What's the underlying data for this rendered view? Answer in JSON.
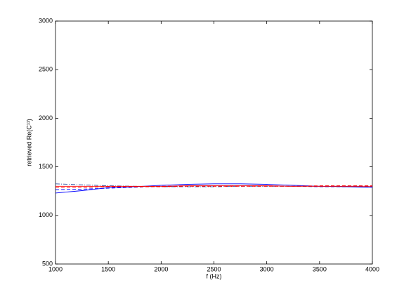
{
  "chart_data": {
    "type": "line",
    "xlabel": "f (Hz)",
    "ylabel": "retrieved Re(C¹¹)",
    "x": [
      1000,
      1250,
      1500,
      1750,
      2000,
      2250,
      2500,
      2750,
      3000,
      3250,
      3500,
      3750,
      4000
    ],
    "series": [
      {
        "color": "#0000ff",
        "style": "solid",
        "values": [
          1230,
          1255,
          1285,
          1295,
          1310,
          1320,
          1325,
          1325,
          1320,
          1310,
          1300,
          1295,
          1290
        ]
      },
      {
        "color": "#0000ff",
        "style": "dashed",
        "values": [
          1265,
          1270,
          1280,
          1290,
          1300,
          1305,
          1305,
          1305,
          1305,
          1300,
          1295,
          1295,
          1295
        ]
      },
      {
        "color": "#3050a0",
        "style": "dashdot",
        "values": [
          1325,
          1315,
          1305,
          1300,
          1295,
          1295,
          1295,
          1300,
          1300,
          1300,
          1300,
          1300,
          1300
        ]
      },
      {
        "color": "#ff0000",
        "style": "solid",
        "values": [
          1300,
          1300,
          1300,
          1300,
          1300,
          1305,
          1305,
          1305,
          1305,
          1300,
          1300,
          1300,
          1300
        ]
      },
      {
        "color": "#ff0000",
        "style": "dashed",
        "values": [
          1290,
          1290,
          1295,
          1295,
          1295,
          1300,
          1300,
          1300,
          1300,
          1300,
          1305,
          1305,
          1305
        ]
      }
    ],
    "xlim": [
      1000,
      4000
    ],
    "xticks": [
      1000,
      1500,
      2000,
      2500,
      3000,
      3500,
      4000
    ],
    "ylim": [
      500,
      3000
    ],
    "yticks": [
      500,
      1000,
      1500,
      2000,
      2500,
      3000
    ],
    "grid": false
  }
}
